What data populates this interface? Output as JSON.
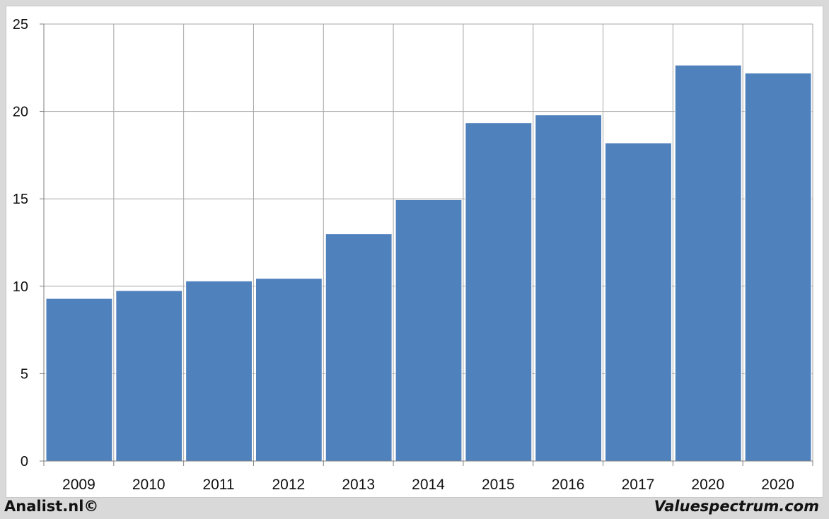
{
  "chart_data": {
    "type": "bar",
    "title": "",
    "xlabel": "",
    "ylabel": "",
    "categories": [
      "2009",
      "2010",
      "2011",
      "2012",
      "2013",
      "2014",
      "2015",
      "2016",
      "2017",
      "2020",
      "2020"
    ],
    "values": [
      9.3,
      9.75,
      10.3,
      10.45,
      13.0,
      14.95,
      19.35,
      19.8,
      18.2,
      22.65,
      22.2
    ],
    "ylim": [
      0,
      25
    ],
    "yticks": [
      "0",
      "5",
      "10",
      "15",
      "20",
      "25"
    ],
    "grid": true,
    "legend": "none",
    "bar_color": "#4f81bd",
    "grid_color": "#a6a6a6"
  },
  "footer": {
    "left": "Analist.nl©",
    "right": "Valuespectrum.com"
  }
}
